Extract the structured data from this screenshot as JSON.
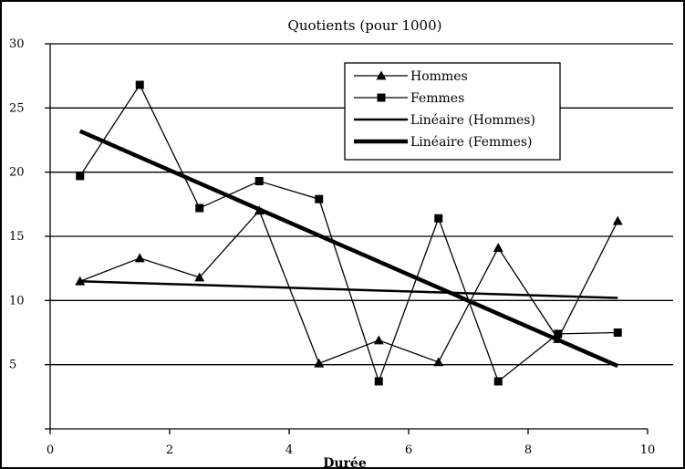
{
  "chart_data": {
    "type": "line",
    "title": "Quotients (pour 1000)",
    "xlabel": "Durée",
    "ylabel": "",
    "xlim": [
      0,
      10
    ],
    "ylim": [
      0,
      30
    ],
    "x_ticks": [
      0,
      2,
      4,
      6,
      8,
      10
    ],
    "x_tick_labels": [
      "0",
      "2",
      "4",
      "6",
      "8",
      "10"
    ],
    "y_ticks": [
      5,
      10,
      15,
      20,
      25,
      30
    ],
    "y_tick_labels": [
      "5",
      "10",
      "15",
      "20",
      "25",
      "30"
    ],
    "grid": "horizontal",
    "legend_position": "top-right",
    "series": [
      {
        "name": "Hommes",
        "marker": "triangle",
        "x": [
          0.5,
          1.5,
          2.5,
          3.5,
          4.5,
          5.5,
          6.5,
          7.5,
          8.5,
          9.5
        ],
        "values": [
          11.5,
          13.3,
          11.8,
          17.0,
          5.1,
          6.9,
          5.2,
          14.1,
          7.0,
          16.2
        ]
      },
      {
        "name": "Femmes",
        "marker": "square",
        "x": [
          0.5,
          1.5,
          2.5,
          3.5,
          4.5,
          5.5,
          6.5,
          7.5,
          8.5,
          9.5
        ],
        "values": [
          19.7,
          26.8,
          17.2,
          19.3,
          17.9,
          3.7,
          16.4,
          3.7,
          7.4,
          7.5
        ]
      }
    ],
    "trendlines": [
      {
        "name": "Linéaire (Hommes)",
        "type": "linear",
        "x": [
          0.5,
          9.5
        ],
        "values": [
          11.5,
          10.2
        ]
      },
      {
        "name": "Linéaire (Femmes)",
        "type": "linear",
        "x": [
          0.5,
          9.5
        ],
        "values": [
          23.2,
          4.9
        ]
      }
    ]
  }
}
